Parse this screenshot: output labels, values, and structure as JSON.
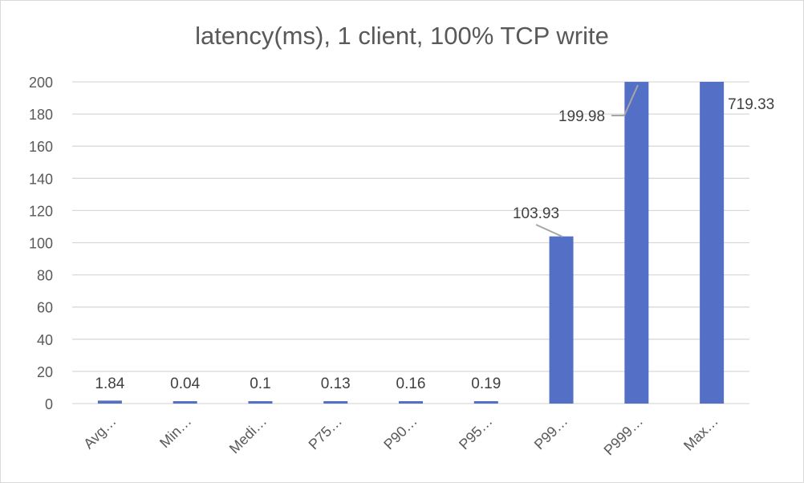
{
  "chart_data": {
    "type": "bar",
    "title": "latency(ms), 1 client, 100% TCP write",
    "categories": [
      "Avg…",
      "Min…",
      "Medi…",
      "P75…",
      "P90…",
      "P95…",
      "P99…",
      "P999…",
      "Max…"
    ],
    "values": [
      1.84,
      0.04,
      0.1,
      0.13,
      0.16,
      0.19,
      103.93,
      199.98,
      719.33
    ],
    "data_labels": [
      "1.84",
      "0.04",
      "0.1",
      "0.13",
      "0.16",
      "0.19",
      "103.93",
      "199.98",
      "719.33"
    ],
    "y_ticks": [
      "0",
      "20",
      "40",
      "60",
      "80",
      "100",
      "120",
      "140",
      "160",
      "180",
      "200"
    ],
    "ylim": [
      0,
      200
    ],
    "grid": true,
    "legend": "none",
    "bar_color": "#5470c6",
    "grid_color": "#d9d9d9"
  }
}
